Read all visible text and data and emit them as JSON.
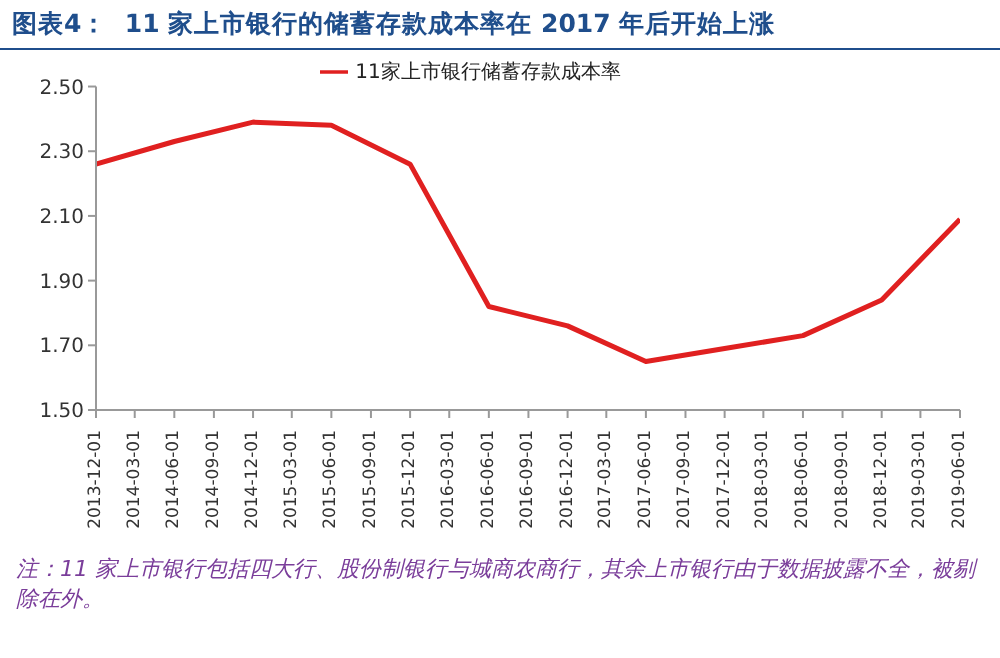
{
  "chart_data": {
    "type": "line",
    "title": "图表4：  11 家上市银行的储蓄存款成本率在 2017 年后开始上涨",
    "x": [
      "2013-12-01",
      "2014-06-01",
      "2014-12-01",
      "2015-06-01",
      "2015-12-01",
      "2016-06-01",
      "2016-12-01",
      "2017-06-01",
      "2017-12-01",
      "2018-06-01",
      "2018-12-01",
      "2019-06-01"
    ],
    "series": [
      {
        "name": "11家上市银行储蓄存款成本率",
        "color": "#e02020",
        "values": [
          2.26,
          2.33,
          2.39,
          2.38,
          2.26,
          1.82,
          1.76,
          1.65,
          1.69,
          1.73,
          1.84,
          2.09
        ]
      }
    ],
    "xlim": [
      "2013-12-01",
      "2019-06-01"
    ],
    "xticks": [
      "2013-12-01",
      "2014-03-01",
      "2014-06-01",
      "2014-09-01",
      "2014-12-01",
      "2015-03-01",
      "2015-06-01",
      "2015-09-01",
      "2015-12-01",
      "2016-03-01",
      "2016-06-01",
      "2016-09-01",
      "2016-12-01",
      "2017-03-01",
      "2017-06-01",
      "2017-09-01",
      "2017-12-01",
      "2018-03-01",
      "2018-06-01",
      "2018-09-01",
      "2018-12-01",
      "2019-03-01",
      "2019-06-01"
    ],
    "ylim": [
      1.5,
      2.5
    ],
    "yticks": [
      {
        "value": 1.5,
        "label": "1.50"
      },
      {
        "value": 1.7,
        "label": "1.70"
      },
      {
        "value": 1.9,
        "label": "1.90"
      },
      {
        "value": 2.1,
        "label": "2.10"
      },
      {
        "value": 2.3,
        "label": "2.30"
      },
      {
        "value": 2.5,
        "label": "2.50"
      }
    ],
    "grid": false,
    "legend": "top",
    "marker": "none",
    "line_style": "solid",
    "annotations": [
      "注：11 家上市银行包括四大行、股份制银行与城商农商行，其余上市银行由于数据披露不全，被剔除在外。"
    ]
  }
}
